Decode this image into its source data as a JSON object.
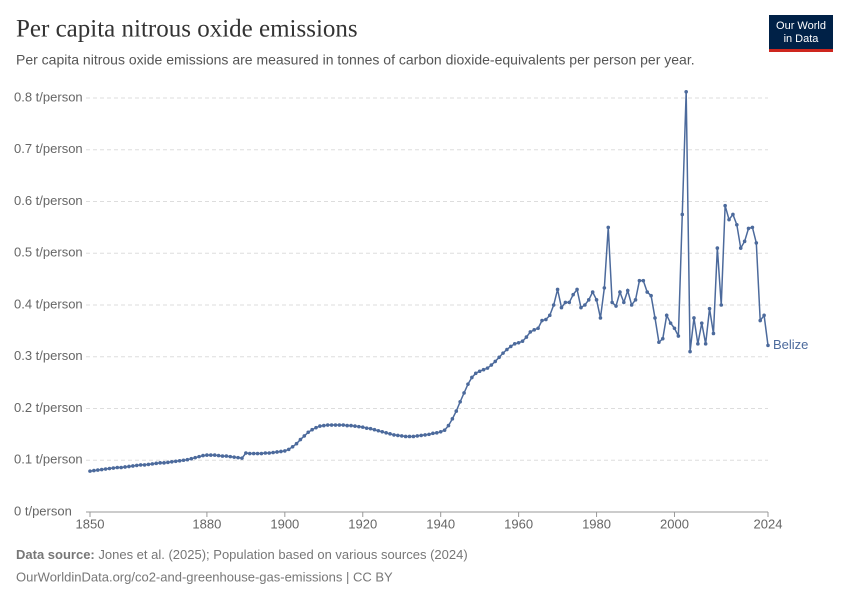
{
  "chart_data": {
    "type": "line",
    "title": "Per capita nitrous oxide emissions",
    "subtitle": "Per capita nitrous oxide emissions are measured in tonnes of carbon dioxide-equivalents per person per year.",
    "logo": [
      "Our World",
      "in Data"
    ],
    "source_label": "Data source:",
    "source": "Jones et al. (2025); Population based on various sources (2024)",
    "footer": "OurWorldinData.org/co2-and-greenhouse-gas-emissions | CC BY",
    "xlim": [
      1850,
      2024
    ],
    "xticks": [
      1850,
      1880,
      1900,
      1920,
      1940,
      1960,
      1980,
      2000,
      2024
    ],
    "ylim": [
      0,
      0.8
    ],
    "yticks": [
      {
        "value": 0,
        "label": "0 t/person"
      },
      {
        "value": 0.1,
        "label": "0.1 t/person"
      },
      {
        "value": 0.2,
        "label": "0.2 t/person"
      },
      {
        "value": 0.3,
        "label": "0.3 t/person"
      },
      {
        "value": 0.4,
        "label": "0.4 t/person"
      },
      {
        "value": 0.5,
        "label": "0.5 t/person"
      },
      {
        "value": 0.6,
        "label": "0.6 t/person"
      },
      {
        "value": 0.7,
        "label": "0.7 t/person"
      },
      {
        "value": 0.8,
        "label": "0.8 t/person"
      }
    ],
    "grid": true,
    "x": [
      1850,
      1851,
      1852,
      1853,
      1854,
      1855,
      1856,
      1857,
      1858,
      1859,
      1860,
      1861,
      1862,
      1863,
      1864,
      1865,
      1866,
      1867,
      1868,
      1869,
      1870,
      1871,
      1872,
      1873,
      1874,
      1875,
      1876,
      1877,
      1878,
      1879,
      1880,
      1881,
      1882,
      1883,
      1884,
      1885,
      1886,
      1887,
      1888,
      1889,
      1890,
      1891,
      1892,
      1893,
      1894,
      1895,
      1896,
      1897,
      1898,
      1899,
      1900,
      1901,
      1902,
      1903,
      1904,
      1905,
      1906,
      1907,
      1908,
      1909,
      1910,
      1911,
      1912,
      1913,
      1914,
      1915,
      1916,
      1917,
      1918,
      1919,
      1920,
      1921,
      1922,
      1923,
      1924,
      1925,
      1926,
      1927,
      1928,
      1929,
      1930,
      1931,
      1932,
      1933,
      1934,
      1935,
      1936,
      1937,
      1938,
      1939,
      1940,
      1941,
      1942,
      1943,
      1944,
      1945,
      1946,
      1947,
      1948,
      1949,
      1950,
      1951,
      1952,
      1953,
      1954,
      1955,
      1956,
      1957,
      1958,
      1959,
      1960,
      1961,
      1962,
      1963,
      1964,
      1965,
      1966,
      1967,
      1968,
      1969,
      1970,
      1971,
      1972,
      1973,
      1974,
      1975,
      1976,
      1977,
      1978,
      1979,
      1980,
      1981,
      1982,
      1983,
      1984,
      1985,
      1986,
      1987,
      1988,
      1989,
      1990,
      1991,
      1992,
      1993,
      1994,
      1995,
      1996,
      1997,
      1998,
      1999,
      2000,
      2001,
      2002,
      2003,
      2004,
      2005,
      2006,
      2007,
      2008,
      2009,
      2010,
      2011,
      2012,
      2013,
      2014,
      2015,
      2016,
      2017,
      2018,
      2019,
      2020,
      2021,
      2022,
      2023,
      2024
    ],
    "series": [
      {
        "name": "Belize",
        "color": "#4c6a9c",
        "values": [
          0.079,
          0.08,
          0.081,
          0.082,
          0.083,
          0.084,
          0.085,
          0.086,
          0.086,
          0.087,
          0.088,
          0.089,
          0.09,
          0.091,
          0.091,
          0.092,
          0.093,
          0.094,
          0.095,
          0.095,
          0.096,
          0.097,
          0.098,
          0.099,
          0.1,
          0.101,
          0.103,
          0.105,
          0.107,
          0.109,
          0.11,
          0.11,
          0.11,
          0.109,
          0.108,
          0.108,
          0.107,
          0.106,
          0.105,
          0.104,
          0.114,
          0.113,
          0.113,
          0.113,
          0.113,
          0.114,
          0.114,
          0.115,
          0.116,
          0.117,
          0.118,
          0.121,
          0.126,
          0.132,
          0.14,
          0.147,
          0.154,
          0.159,
          0.163,
          0.166,
          0.167,
          0.168,
          0.168,
          0.168,
          0.168,
          0.168,
          0.167,
          0.167,
          0.166,
          0.165,
          0.164,
          0.162,
          0.161,
          0.159,
          0.157,
          0.155,
          0.153,
          0.151,
          0.149,
          0.148,
          0.147,
          0.146,
          0.146,
          0.146,
          0.147,
          0.148,
          0.149,
          0.15,
          0.152,
          0.153,
          0.155,
          0.158,
          0.167,
          0.18,
          0.195,
          0.213,
          0.23,
          0.247,
          0.26,
          0.268,
          0.272,
          0.275,
          0.278,
          0.284,
          0.291,
          0.299,
          0.307,
          0.314,
          0.32,
          0.325,
          0.327,
          0.33,
          0.338,
          0.348,
          0.352,
          0.355,
          0.37,
          0.372,
          0.38,
          0.4,
          0.43,
          0.395,
          0.405,
          0.405,
          0.42,
          0.43,
          0.395,
          0.4,
          0.41,
          0.425,
          0.41,
          0.375,
          0.433,
          0.55,
          0.405,
          0.398,
          0.425,
          0.405,
          0.428,
          0.4,
          0.41,
          0.447,
          0.447,
          0.425,
          0.418,
          0.375,
          0.328,
          0.335,
          0.38,
          0.365,
          0.355,
          0.34,
          0.575,
          0.812,
          0.31,
          0.375,
          0.325,
          0.365,
          0.325,
          0.393,
          0.345,
          0.51,
          0.4,
          0.592,
          0.565,
          0.575,
          0.555,
          0.51,
          0.523,
          0.548,
          0.55,
          0.52,
          0.37,
          0.38,
          0.322
        ]
      }
    ]
  }
}
